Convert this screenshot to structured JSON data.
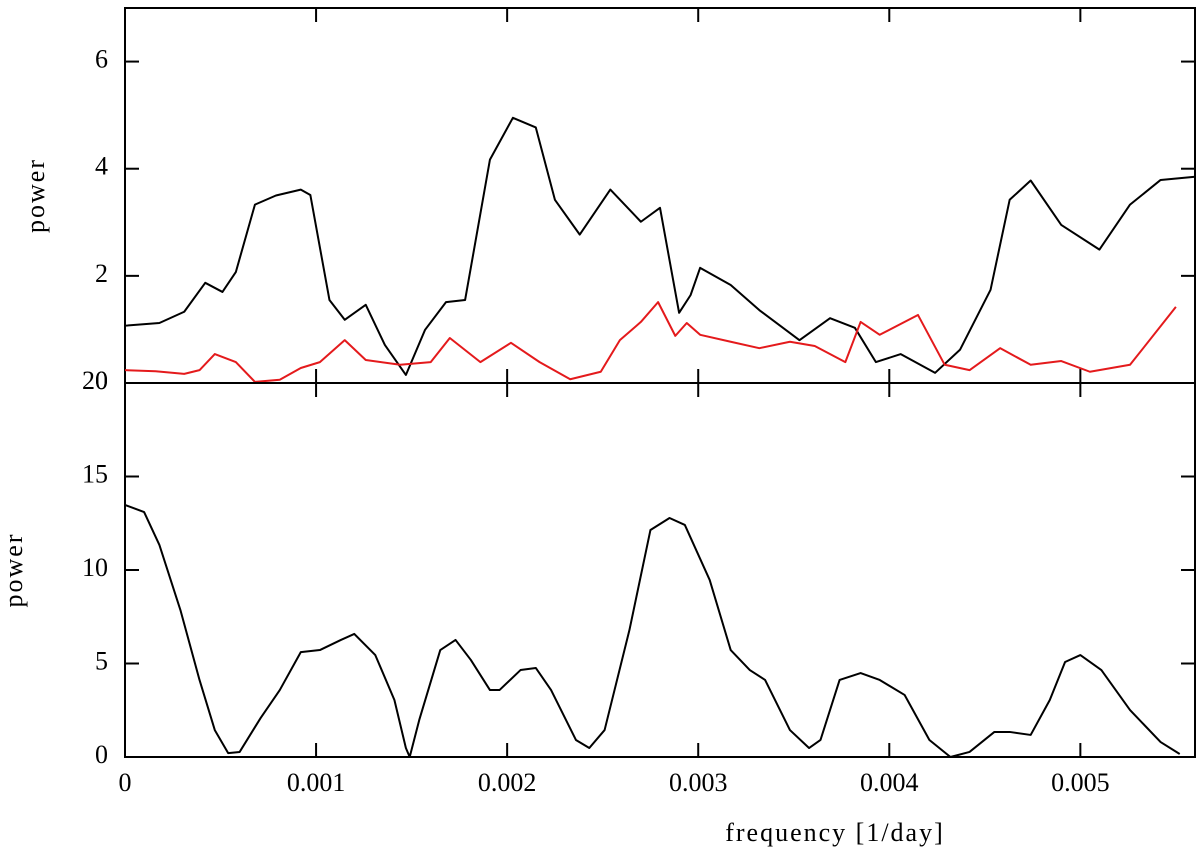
{
  "chart_data": [
    {
      "type": "line",
      "ylabel": "power",
      "xlim": [
        0,
        0.0056
      ],
      "xticks": [
        0,
        0.001,
        0.002,
        0.003,
        0.004,
        0.005
      ],
      "ylim": [
        0,
        7
      ],
      "yticks": [
        0,
        2,
        4,
        6
      ],
      "series": [
        {
          "color": "#000000",
          "x": [
            0,
            0.00018,
            0.00031,
            0.00042,
            0.00051,
            0.00058,
            0.00068,
            0.00079,
            0.00092,
            0.00097,
            0.00107,
            0.00115,
            0.00126,
            0.00136,
            0.00147,
            0.00157,
            0.00168,
            0.00178,
            0.00191,
            0.00203,
            0.00215,
            0.00225,
            0.00238,
            0.00254,
            0.0027,
            0.0028,
            0.0029,
            0.00296,
            0.00301,
            0.00317,
            0.00332,
            0.00353,
            0.00369,
            0.00382,
            0.00393,
            0.00406,
            0.00424,
            0.00437,
            0.00453,
            0.00463,
            0.00474,
            0.0049,
            0.0051,
            0.00526,
            0.00542,
            0.0056
          ],
          "values": [
            1.07,
            1.12,
            1.33,
            1.87,
            1.7,
            2.07,
            3.33,
            3.5,
            3.61,
            3.51,
            1.55,
            1.18,
            1.46,
            0.71,
            0.15,
            0.99,
            1.51,
            1.55,
            4.17,
            4.95,
            4.77,
            3.42,
            2.77,
            3.61,
            3.01,
            3.27,
            1.31,
            1.64,
            2.15,
            1.83,
            1.36,
            0.8,
            1.21,
            1.03,
            0.39,
            0.54,
            0.19,
            0.62,
            1.74,
            3.42,
            3.78,
            2.95,
            2.49,
            3.33,
            3.79,
            3.85
          ]
        },
        {
          "color": "#e41a1c",
          "x": [
            0,
            0.00016,
            0.00031,
            0.00039,
            0.00047,
            0.00058,
            0.00068,
            0.00081,
            0.00092,
            0.00102,
            0.00115,
            0.00126,
            0.00144,
            0.0016,
            0.0017,
            0.00186,
            0.00202,
            0.00217,
            0.00233,
            0.00249,
            0.00259,
            0.0027,
            0.00279,
            0.00288,
            0.00294,
            0.00301,
            0.00317,
            0.00332,
            0.00348,
            0.00361,
            0.00377,
            0.00385,
            0.00395,
            0.00415,
            0.00429,
            0.00442,
            0.00458,
            0.00474,
            0.0049,
            0.00505,
            0.00526,
            0.0055
          ],
          "values": [
            0.24,
            0.22,
            0.17,
            0.24,
            0.54,
            0.39,
            0.02,
            0.06,
            0.28,
            0.39,
            0.8,
            0.43,
            0.34,
            0.39,
            0.84,
            0.39,
            0.75,
            0.39,
            0.07,
            0.21,
            0.8,
            1.14,
            1.51,
            0.88,
            1.12,
            0.9,
            0.77,
            0.65,
            0.77,
            0.69,
            0.39,
            1.14,
            0.9,
            1.27,
            0.34,
            0.24,
            0.65,
            0.34,
            0.41,
            0.21,
            0.34,
            1.42
          ]
        }
      ]
    },
    {
      "type": "line",
      "xlabel": "frequency [1/day]",
      "ylabel": "power",
      "xlim": [
        0,
        0.0056
      ],
      "xticks": [
        0,
        0.001,
        0.002,
        0.003,
        0.004,
        0.005
      ],
      "ylim": [
        0,
        20
      ],
      "yticks": [
        0,
        5,
        10,
        15,
        20
      ],
      "series": [
        {
          "color": "#000000",
          "x": [
            0,
            0.0001,
            0.00018,
            0.00029,
            0.00039,
            0.00047,
            0.00054,
            0.0006,
            0.00071,
            0.00081,
            0.00092,
            0.00102,
            0.00113,
            0.0012,
            0.00131,
            0.00141,
            0.00147,
            0.00149,
            0.00154,
            0.00165,
            0.00173,
            0.00181,
            0.00191,
            0.00196,
            0.00207,
            0.00215,
            0.00223,
            0.00236,
            0.00243,
            0.00251,
            0.00264,
            0.00275,
            0.00285,
            0.00293,
            0.00306,
            0.00317,
            0.00327,
            0.00335,
            0.00348,
            0.00358,
            0.00364,
            0.00374,
            0.00385,
            0.00395,
            0.00408,
            0.00421,
            0.00432,
            0.00442,
            0.00455,
            0.00463,
            0.00474,
            0.00484,
            0.00492,
            0.005,
            0.00511,
            0.00526,
            0.00542,
            0.00552
          ],
          "values": [
            13.48,
            13.1,
            11.34,
            7.86,
            4.12,
            1.44,
            0.21,
            0.27,
            2.09,
            3.58,
            5.61,
            5.72,
            6.26,
            6.58,
            5.45,
            3.05,
            0.48,
            0,
            1.98,
            5.72,
            6.26,
            5.19,
            3.58,
            3.58,
            4.65,
            4.76,
            3.58,
            0.91,
            0.48,
            1.44,
            6.79,
            12.14,
            12.78,
            12.41,
            9.47,
            5.72,
            4.65,
            4.12,
            1.44,
            0.48,
            0.91,
            4.12,
            4.49,
            4.12,
            3.32,
            0.91,
            0,
            0.27,
            1.34,
            1.34,
            1.18,
            3.05,
            5.08,
            5.45,
            4.65,
            2.51,
            0.8,
            0.16
          ]
        }
      ]
    }
  ]
}
